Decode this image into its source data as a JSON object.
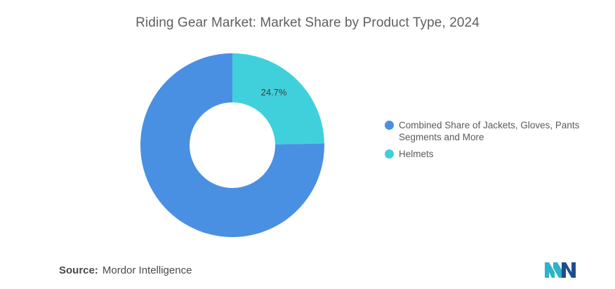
{
  "chart_data": {
    "type": "pie",
    "subtype": "donut",
    "title": "Riding Gear Market: Market Share by Product Type, 2024",
    "series": [
      {
        "name": "Combined Share of Jackets, Gloves, Pants Segments and More",
        "value": 75.3,
        "color": "#4a90e2"
      },
      {
        "name": "Helmets",
        "value": 24.7,
        "color": "#40d0dc",
        "label": "24.7%"
      }
    ],
    "legend_position": "right"
  },
  "source": {
    "label": "Source:",
    "value": "Mordor Intelligence"
  },
  "logo": {
    "icon": "mordor-intelligence-logo",
    "colors": [
      "#2fb3c9",
      "#1f4e8c"
    ]
  }
}
